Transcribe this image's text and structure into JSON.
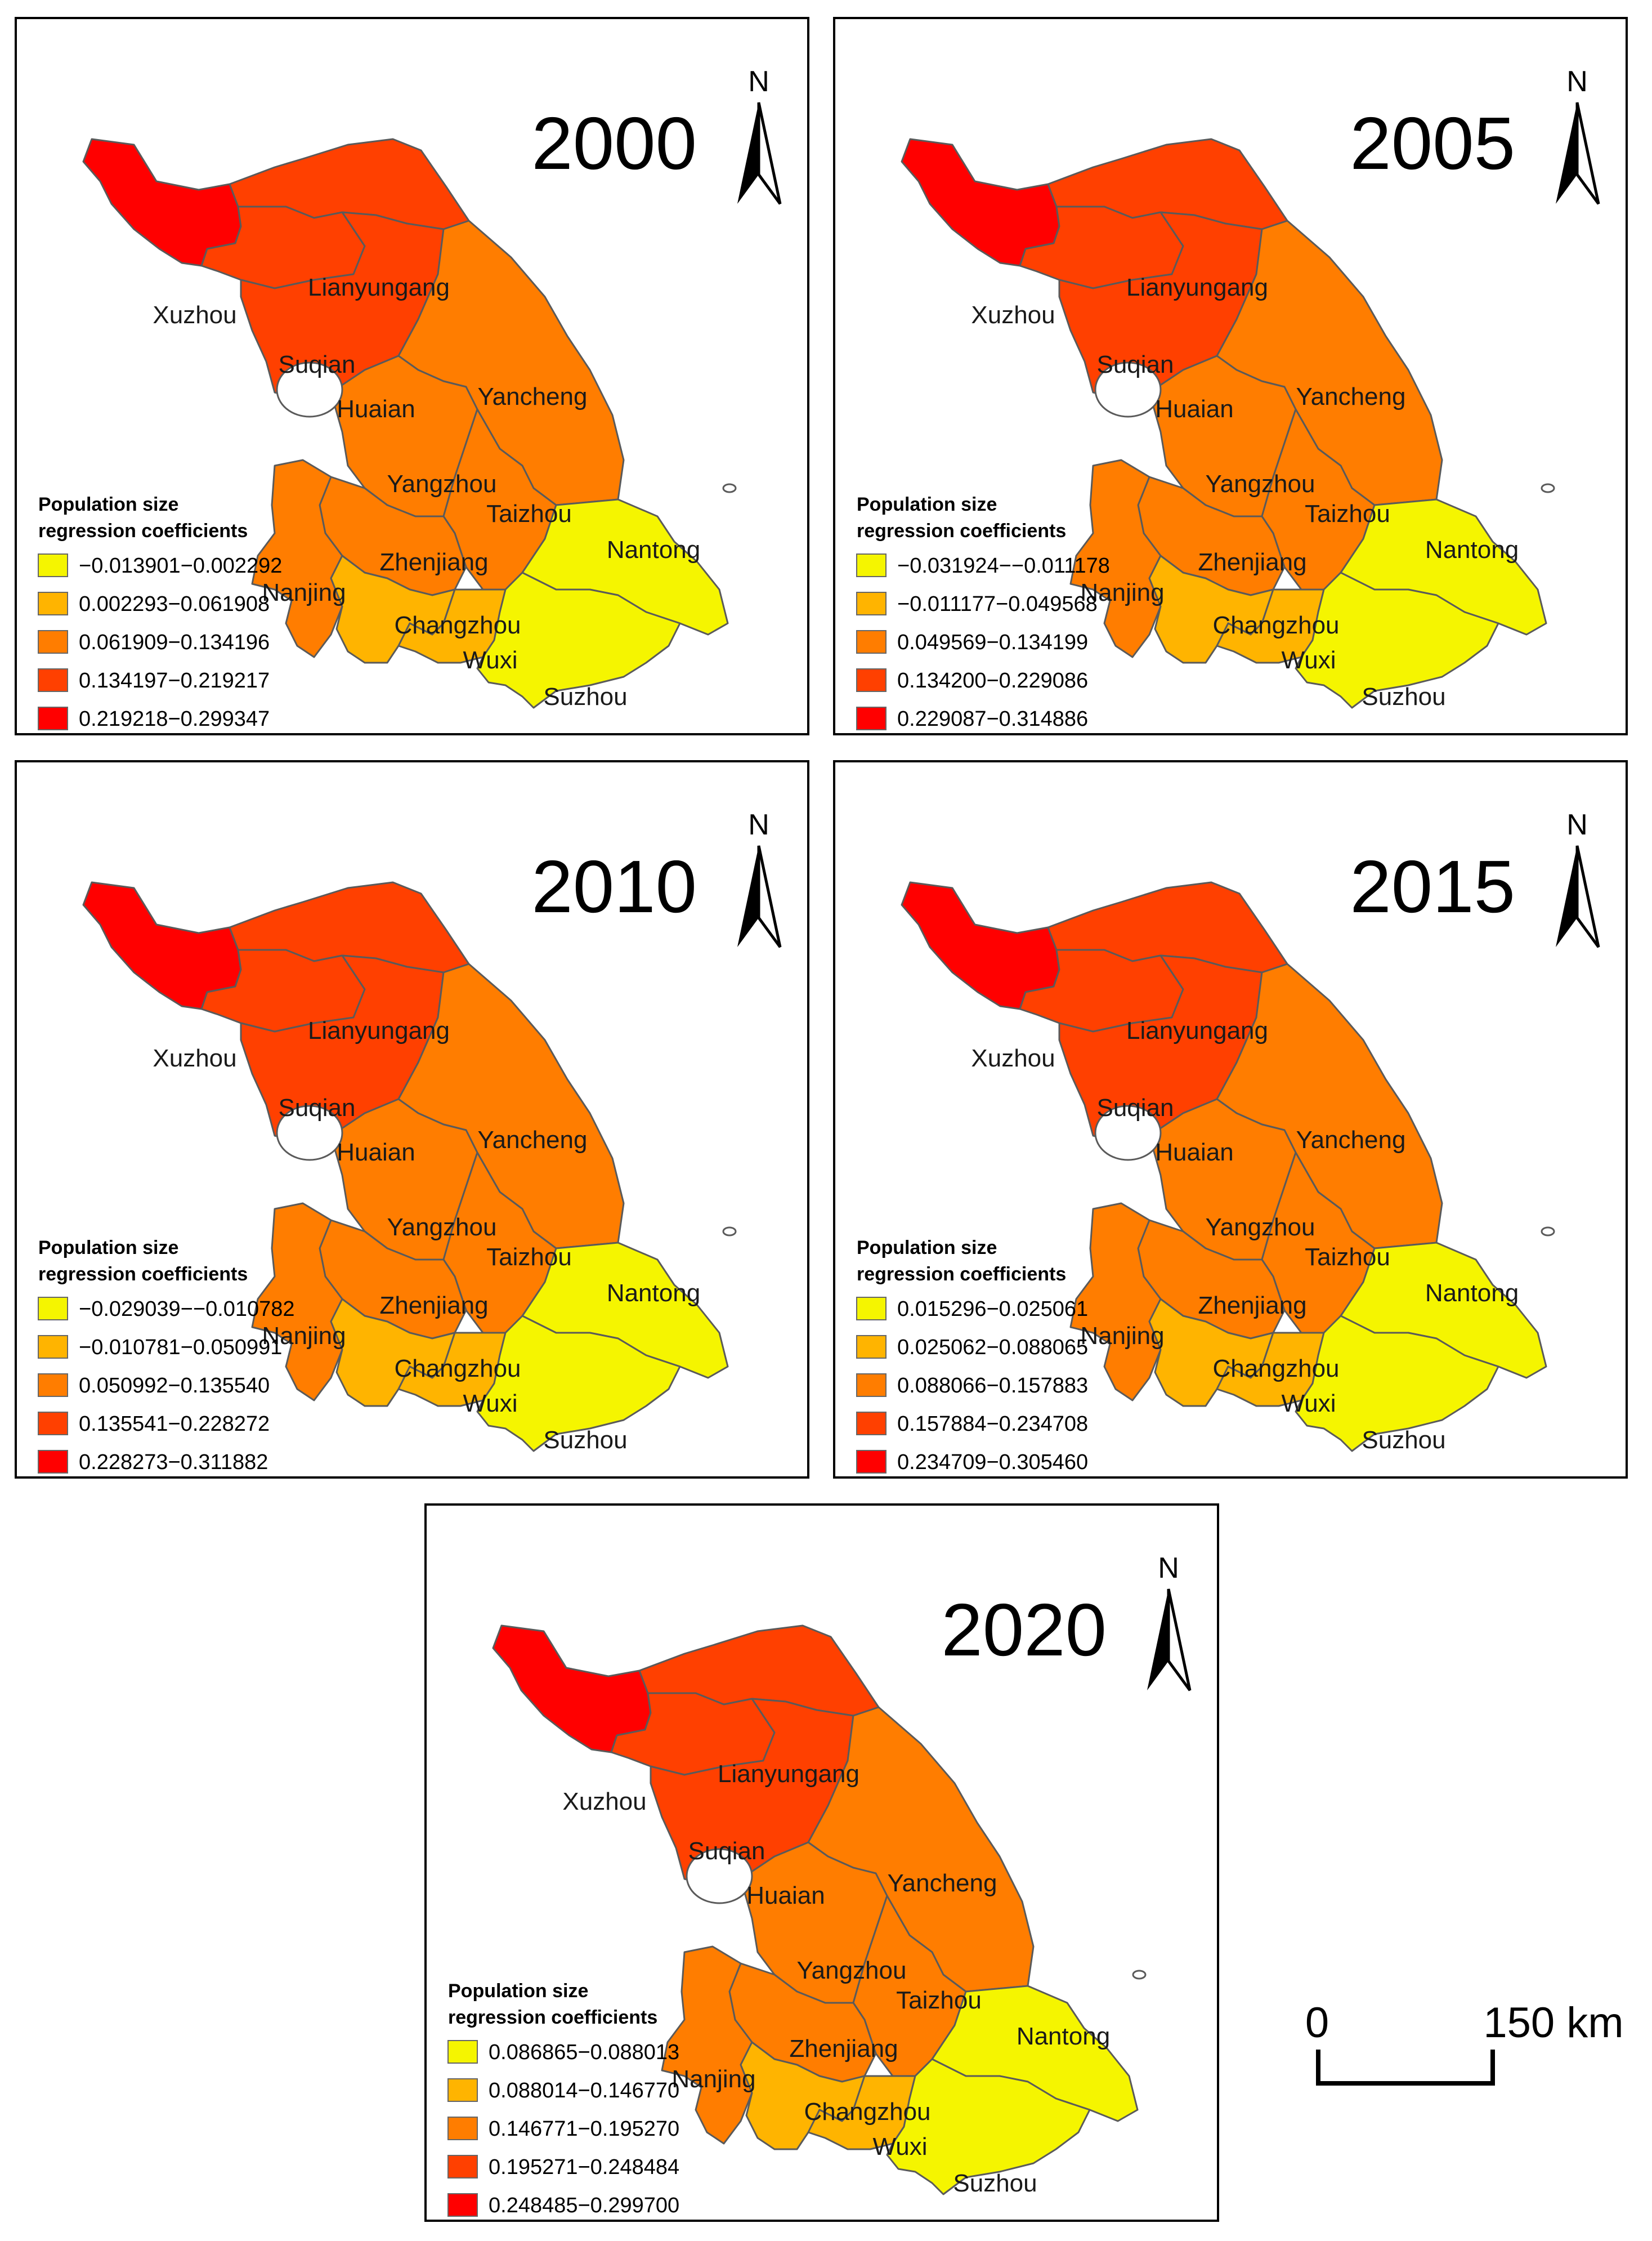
{
  "colors": {
    "class1": "#f5f500",
    "class2": "#ffb400",
    "class3": "#ff7d00",
    "class4": "#ff4000",
    "class5": "#ff0000",
    "island": "#ffffff"
  },
  "legend": {
    "title_line1": "Population size",
    "title_line2": "regression coefficients"
  },
  "north_letter": "N",
  "scale_bar": {
    "start_label": "0",
    "end_label": "150 km"
  },
  "cities": [
    "Xuzhou",
    "Lianyungang",
    "Suqian",
    "Huaian",
    "Yancheng",
    "Yangzhou",
    "Taizhou",
    "Nantong",
    "Zhenjiang",
    "Nanjing",
    "Changzhou",
    "Wuxi",
    "Suzhou"
  ],
  "panels": [
    {
      "year": "2000",
      "legend_items": [
        "−0.013901−0.002292",
        "0.002293−0.061908",
        "0.061909−0.134196",
        "0.134197−0.219217",
        "0.219218−0.299347"
      ],
      "classes": {
        "Xuzhou": 5,
        "Lianyungang": 4,
        "Suqian": 4,
        "Huaian": 4,
        "Yancheng": 3,
        "Yangzhou": 3,
        "Taizhou": 3,
        "Nantong": 1,
        "Zhenjiang": 3,
        "Nanjing": 3,
        "Changzhou": 2,
        "Wuxi": 2,
        "Suzhou": 1
      }
    },
    {
      "year": "2005",
      "legend_items": [
        "−0.031924−−0.011178",
        "−0.011177−0.049568",
        "0.049569−0.134199",
        "0.134200−0.229086",
        "0.229087−0.314886"
      ],
      "classes": {
        "Xuzhou": 5,
        "Lianyungang": 4,
        "Suqian": 4,
        "Huaian": 4,
        "Yancheng": 3,
        "Yangzhou": 3,
        "Taizhou": 3,
        "Nantong": 1,
        "Zhenjiang": 3,
        "Nanjing": 3,
        "Changzhou": 2,
        "Wuxi": 2,
        "Suzhou": 1
      }
    },
    {
      "year": "2010",
      "legend_items": [
        "−0.029039−−0.010782",
        "−0.010781−0.050991",
        "0.050992−0.135540",
        "0.135541−0.228272",
        "0.228273−0.311882"
      ],
      "classes": {
        "Xuzhou": 5,
        "Lianyungang": 4,
        "Suqian": 4,
        "Huaian": 4,
        "Yancheng": 3,
        "Yangzhou": 3,
        "Taizhou": 3,
        "Nantong": 1,
        "Zhenjiang": 3,
        "Nanjing": 3,
        "Changzhou": 2,
        "Wuxi": 2,
        "Suzhou": 1
      }
    },
    {
      "year": "2015",
      "legend_items": [
        "0.015296−0.025061",
        "0.025062−0.088065",
        "0.088066−0.157883",
        "0.157884−0.234708",
        "0.234709−0.305460"
      ],
      "classes": {
        "Xuzhou": 5,
        "Lianyungang": 4,
        "Suqian": 4,
        "Huaian": 4,
        "Yancheng": 3,
        "Yangzhou": 3,
        "Taizhou": 3,
        "Nantong": 1,
        "Zhenjiang": 3,
        "Nanjing": 3,
        "Changzhou": 2,
        "Wuxi": 2,
        "Suzhou": 1
      }
    },
    {
      "year": "2020",
      "legend_items": [
        "0.086865−0.088013",
        "0.088014−0.146770",
        "0.146771−0.195270",
        "0.195271−0.248484",
        "0.248485−0.299700"
      ],
      "classes": {
        "Xuzhou": 5,
        "Lianyungang": 4,
        "Suqian": 4,
        "Huaian": 4,
        "Yancheng": 3,
        "Yangzhou": 3,
        "Taizhou": 3,
        "Nantong": 1,
        "Zhenjiang": 3,
        "Nanjing": 3,
        "Changzhou": 2,
        "Wuxi": 2,
        "Suzhou": 1
      }
    }
  ]
}
